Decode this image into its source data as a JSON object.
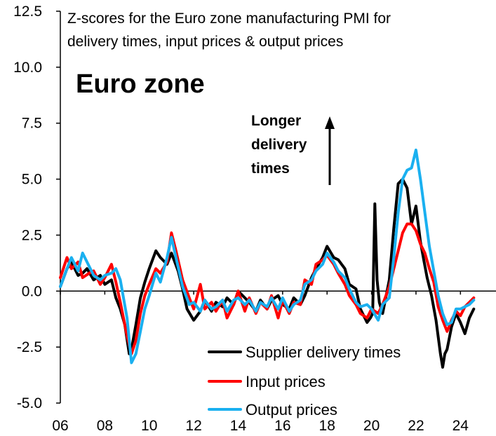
{
  "chart_data": {
    "type": "line",
    "title": "Z-scores for the Euro zone manufacturing PMI for delivery times, input prices & output prices",
    "title_lines": [
      "Z-scores for the Euro zone manufacturing PMI for",
      "delivery times, input prices & output prices"
    ],
    "region_label": "Euro zone",
    "annotation_lines": [
      "Longer",
      "delivery",
      "times"
    ],
    "xlabel": "",
    "ylabel": "",
    "xlim": [
      2006.0,
      2025.0
    ],
    "ylim": [
      -5.0,
      12.5
    ],
    "y_ticks": [
      12.5,
      10.0,
      7.5,
      5.0,
      2.5,
      0.0,
      -2.5,
      -5.0
    ],
    "y_tick_labels": [
      "12.5",
      "10.0",
      "7.5",
      "5.0",
      "2.5",
      "0.0",
      "-2.5",
      "-5.0"
    ],
    "x_ticks": [
      2006,
      2008,
      2010,
      2012,
      2014,
      2016,
      2018,
      2020,
      2022,
      2024
    ],
    "x_tick_labels": [
      "06",
      "08",
      "10",
      "12",
      "14",
      "16",
      "18",
      "20",
      "22",
      "24"
    ],
    "legend": [
      "Supplier delivery times",
      "Input prices",
      "Output prices"
    ],
    "series": [
      {
        "name": "Supplier delivery times",
        "color": "#000000",
        "x": [
          2006.0,
          2006.3,
          2006.5,
          2006.8,
          2007.0,
          2007.2,
          2007.5,
          2007.8,
          2008.0,
          2008.3,
          2008.5,
          2008.7,
          2008.9,
          2009.1,
          2009.2,
          2009.4,
          2009.6,
          2009.8,
          2010.0,
          2010.3,
          2010.5,
          2010.8,
          2011.0,
          2011.3,
          2011.5,
          2011.7,
          2012.0,
          2012.3,
          2012.5,
          2012.8,
          2013.0,
          2013.3,
          2013.5,
          2013.8,
          2014.0,
          2014.3,
          2014.5,
          2014.8,
          2015.0,
          2015.3,
          2015.5,
          2015.8,
          2016.0,
          2016.3,
          2016.5,
          2016.8,
          2017.0,
          2017.3,
          2017.5,
          2017.8,
          2018.0,
          2018.3,
          2018.5,
          2018.8,
          2019.0,
          2019.3,
          2019.5,
          2019.8,
          2019.95,
          2020.05,
          2020.15,
          2020.25,
          2020.35,
          2020.5,
          2020.8,
          2021.0,
          2021.2,
          2021.4,
          2021.6,
          2021.8,
          2022.0,
          2022.2,
          2022.35,
          2022.5,
          2022.7,
          2022.9,
          2023.1,
          2023.2,
          2023.3,
          2023.4,
          2023.6,
          2023.8,
          2024.0,
          2024.2,
          2024.4,
          2024.6
        ],
        "values": [
          0.2,
          1.0,
          1.3,
          0.7,
          0.8,
          1.0,
          0.5,
          0.7,
          0.3,
          0.5,
          -0.3,
          -0.8,
          -1.5,
          -2.8,
          -2.6,
          -1.5,
          -0.3,
          0.4,
          1.0,
          1.8,
          1.5,
          1.2,
          1.7,
          0.9,
          0.1,
          -0.8,
          -1.3,
          -0.9,
          -0.4,
          -0.9,
          -0.5,
          -0.7,
          -0.3,
          -0.6,
          0.0,
          -0.3,
          -0.5,
          -0.9,
          -0.4,
          -0.8,
          -0.4,
          -0.2,
          -0.6,
          -0.8,
          -0.3,
          -0.6,
          -0.2,
          0.6,
          1.0,
          1.5,
          2.0,
          1.5,
          1.4,
          1.0,
          0.3,
          0.1,
          -0.8,
          -1.4,
          -1.2,
          -1.0,
          3.9,
          0.5,
          -0.5,
          -1.0,
          0.5,
          2.8,
          4.8,
          5.0,
          4.6,
          3.0,
          3.8,
          2.2,
          1.4,
          0.6,
          -0.2,
          -1.3,
          -2.8,
          -3.4,
          -2.8,
          -2.6,
          -1.6,
          -1.0,
          -1.4,
          -1.9,
          -1.2,
          -0.8
        ]
      },
      {
        "name": "Input prices",
        "color": "#ff0000",
        "x": [
          2006.0,
          2006.3,
          2006.5,
          2006.8,
          2007.0,
          2007.3,
          2007.5,
          2007.8,
          2008.0,
          2008.3,
          2008.5,
          2008.7,
          2009.0,
          2009.2,
          2009.4,
          2009.6,
          2009.8,
          2010.0,
          2010.3,
          2010.5,
          2010.8,
          2011.0,
          2011.2,
          2011.5,
          2011.8,
          2012.0,
          2012.3,
          2012.5,
          2012.8,
          2013.0,
          2013.3,
          2013.5,
          2013.8,
          2014.0,
          2014.3,
          2014.5,
          2014.8,
          2015.0,
          2015.3,
          2015.5,
          2015.8,
          2016.0,
          2016.3,
          2016.5,
          2016.8,
          2017.0,
          2017.3,
          2017.5,
          2017.8,
          2018.0,
          2018.3,
          2018.5,
          2018.8,
          2019.0,
          2019.3,
          2019.5,
          2019.8,
          2020.0,
          2020.3,
          2020.5,
          2020.8,
          2021.0,
          2021.2,
          2021.4,
          2021.6,
          2021.8,
          2022.0,
          2022.2,
          2022.4,
          2022.6,
          2022.8,
          2023.0,
          2023.2,
          2023.4,
          2023.6,
          2023.8,
          2024.0,
          2024.2,
          2024.4,
          2024.6
        ],
        "values": [
          0.6,
          1.5,
          1.0,
          1.3,
          0.6,
          0.8,
          0.9,
          0.3,
          0.6,
          1.2,
          0.4,
          -0.5,
          -2.0,
          -2.8,
          -2.2,
          -1.0,
          -0.2,
          0.3,
          1.0,
          0.8,
          1.3,
          2.6,
          1.8,
          0.5,
          -0.3,
          -0.8,
          0.3,
          -0.8,
          -0.5,
          -0.9,
          -0.4,
          -1.2,
          -0.6,
          0.0,
          -0.9,
          -0.3,
          -1.0,
          -0.5,
          -0.8,
          -0.2,
          -1.2,
          -0.4,
          -1.0,
          -0.5,
          -0.6,
          0.5,
          0.3,
          1.2,
          1.4,
          1.6,
          1.2,
          0.8,
          0.3,
          -0.2,
          -0.6,
          -1.0,
          -1.2,
          -0.8,
          -1.0,
          -0.6,
          0.2,
          1.0,
          1.8,
          2.6,
          3.0,
          3.0,
          2.7,
          2.1,
          1.7,
          1.0,
          0.4,
          -0.7,
          -1.3,
          -1.8,
          -1.3,
          -0.9,
          -1.1,
          -0.7,
          -0.5,
          -0.3
        ]
      },
      {
        "name": "Output prices",
        "color": "#1ab0f0",
        "x": [
          2006.0,
          2006.3,
          2006.5,
          2006.8,
          2007.0,
          2007.3,
          2007.5,
          2007.8,
          2008.0,
          2008.3,
          2008.5,
          2008.7,
          2009.0,
          2009.2,
          2009.4,
          2009.6,
          2009.8,
          2010.0,
          2010.3,
          2010.5,
          2010.8,
          2011.0,
          2011.2,
          2011.5,
          2011.8,
          2012.0,
          2012.3,
          2012.5,
          2012.8,
          2013.0,
          2013.3,
          2013.5,
          2013.8,
          2014.0,
          2014.3,
          2014.5,
          2014.8,
          2015.0,
          2015.3,
          2015.5,
          2015.8,
          2016.0,
          2016.3,
          2016.5,
          2016.8,
          2017.0,
          2017.3,
          2017.5,
          2017.8,
          2018.0,
          2018.3,
          2018.5,
          2018.8,
          2019.0,
          2019.3,
          2019.5,
          2019.8,
          2020.0,
          2020.3,
          2020.5,
          2020.8,
          2021.0,
          2021.2,
          2021.4,
          2021.6,
          2021.8,
          2022.0,
          2022.2,
          2022.4,
          2022.6,
          2022.8,
          2023.0,
          2023.2,
          2023.4,
          2023.6,
          2023.8,
          2024.0,
          2024.2,
          2024.4,
          2024.6
        ],
        "values": [
          0.2,
          1.0,
          1.5,
          0.9,
          1.7,
          1.1,
          0.7,
          0.5,
          0.7,
          0.8,
          1.0,
          0.5,
          -1.2,
          -3.2,
          -2.8,
          -1.8,
          -0.8,
          -0.2,
          0.8,
          0.4,
          1.5,
          2.4,
          1.5,
          0.2,
          -0.6,
          -0.5,
          -0.9,
          -0.4,
          -0.8,
          -0.7,
          -0.4,
          -0.9,
          -0.4,
          -0.3,
          -0.6,
          -0.4,
          -0.9,
          -0.5,
          -0.7,
          -0.3,
          -0.8,
          -0.3,
          -0.9,
          -0.6,
          -0.4,
          0.3,
          0.5,
          0.9,
          1.2,
          1.7,
          1.3,
          0.9,
          0.6,
          0.1,
          -0.5,
          -0.7,
          -0.6,
          -0.8,
          -1.3,
          -0.6,
          -0.3,
          1.5,
          3.5,
          5.0,
          5.4,
          5.5,
          6.3,
          5.0,
          3.5,
          2.0,
          0.9,
          -0.2,
          -1.0,
          -1.5,
          -1.4,
          -0.8,
          -0.8,
          -0.7,
          -0.6,
          -0.4
        ]
      }
    ]
  }
}
